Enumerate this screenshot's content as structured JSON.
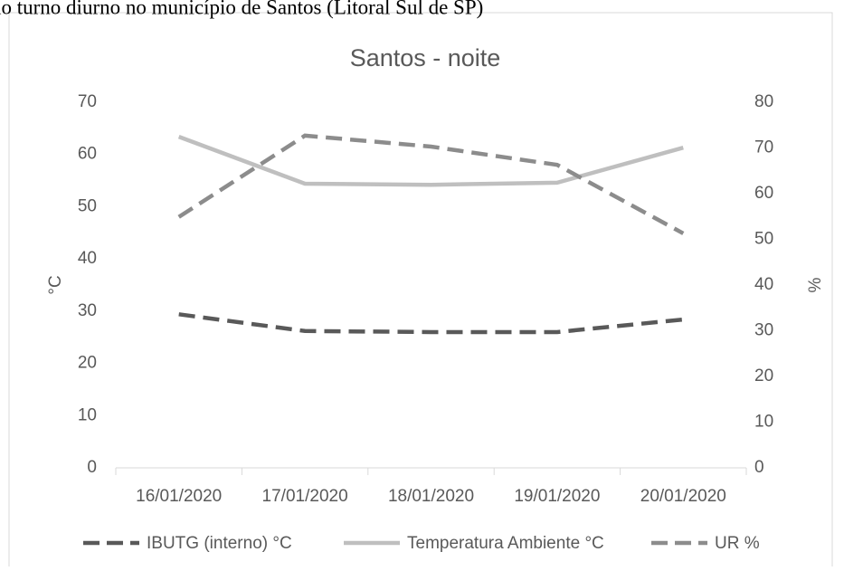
{
  "page_caption": "no turno diurno no município de Santos (Litoral Sul de SP)",
  "chart_data": {
    "type": "line",
    "title": "Santos - noite",
    "categories": [
      "16/01/2020",
      "17/01/2020",
      "18/01/2020",
      "19/01/2020",
      "20/01/2020"
    ],
    "series": [
      {
        "name": "IBUTG (interno) °C",
        "color": "#595959",
        "line_style": "dashed",
        "values": [
          29.4,
          26.2,
          26.0,
          26.0,
          28.4
        ]
      },
      {
        "name": "Temperatura Ambiente °C",
        "color": "#bfbfbf",
        "line_style": "solid",
        "values": [
          63.4,
          54.4,
          54.2,
          54.6,
          61.3
        ]
      },
      {
        "name": "UR %",
        "color": "#8c8c8c",
        "line_style": "dashed",
        "axis": "y2",
        "values": [
          54.9,
          72.7,
          70.3,
          66.3,
          51.3
        ]
      }
    ],
    "ylabel": "°C",
    "y2label": "%",
    "ylim": [
      0,
      70
    ],
    "yticks": [
      0,
      10,
      20,
      30,
      40,
      50,
      60,
      70
    ],
    "y2lim": [
      0,
      80
    ],
    "y2ticks": [
      0,
      10,
      20,
      30,
      40,
      50,
      60,
      70,
      80
    ],
    "grid": false,
    "legend": "bottom"
  }
}
